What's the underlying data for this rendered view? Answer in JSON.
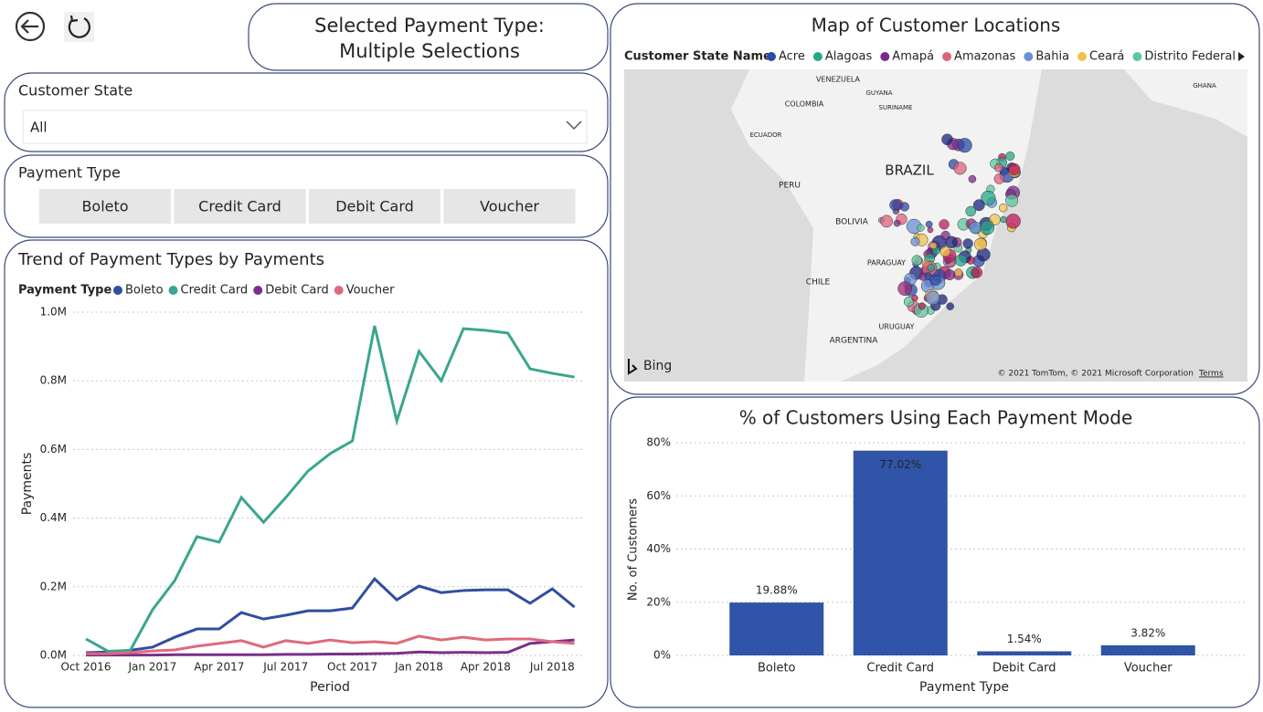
{
  "header": {
    "title_line1": "Selected Payment Type:",
    "title_line2": "Multiple Selections"
  },
  "filters": {
    "state_label": "Customer State",
    "state_value": "All",
    "payment_label": "Payment Type",
    "payment_options": [
      "Boleto",
      "Credit Card",
      "Debit Card",
      "Voucher"
    ]
  },
  "map": {
    "title": "Map of Customer Locations",
    "legend_title": "Customer State Name",
    "legend": [
      {
        "name": "Acre",
        "color": "#2a4aa8"
      },
      {
        "name": "Alagoas",
        "color": "#2aa58a"
      },
      {
        "name": "Amapá",
        "color": "#7b2a8a"
      },
      {
        "name": "Amazonas",
        "color": "#e0607e"
      },
      {
        "name": "Bahia",
        "color": "#6b8fd6"
      },
      {
        "name": "Ceará",
        "color": "#f0c24f"
      },
      {
        "name": "Distrito Federal",
        "color": "#5cc8a0"
      }
    ],
    "labels": [
      "VENEZUELA",
      "GUYANA",
      "SURINAME",
      "COLOMBIA",
      "ECUADOR",
      "BRAZIL",
      "PERU",
      "BOLIVIA",
      "PARAGUAY",
      "CHILE",
      "URUGUAY",
      "ARGENTINA",
      "GHANA"
    ],
    "brand": "Bing",
    "copyright": "© 2021 TomTom, © 2021 Microsoft Corporation",
    "terms": "Terms"
  },
  "chart_data": [
    {
      "type": "line",
      "title": "Trend of Payment Types by Payments",
      "legend_title": "Payment Type",
      "x_label": "Period",
      "y_label": "Payments",
      "x": [
        "Oct 2016",
        null,
        null,
        "Jan 2017",
        null,
        null,
        "Apr 2017",
        null,
        null,
        "Jul 2017",
        null,
        null,
        "Oct 2017",
        null,
        null,
        "Jan 2018",
        null,
        null,
        "Apr 2018",
        null,
        null,
        "Jul 2018",
        null
      ],
      "series": [
        {
          "name": "Boleto",
          "color": "#2f4f9f",
          "values": [
            8000,
            10000,
            15000,
            24000,
            53000,
            77000,
            77000,
            125000,
            106000,
            117000,
            130000,
            130000,
            138000,
            223000,
            162000,
            202000,
            183000,
            189000,
            191000,
            191000,
            152000,
            194000,
            141000
          ]
        },
        {
          "name": "Credit Card",
          "color": "#3aa68d",
          "values": [
            48000,
            12000,
            15000,
            133000,
            218000,
            346000,
            330000,
            460000,
            388000,
            460000,
            537000,
            588000,
            625000,
            960000,
            683000,
            886000,
            800000,
            952000,
            947000,
            939000,
            835000,
            822000,
            811000
          ]
        },
        {
          "name": "Debit Card",
          "color": "#7a2f8a",
          "values": [
            1000,
            1000,
            1000,
            1000,
            2000,
            2000,
            2000,
            2000,
            2000,
            3000,
            3000,
            4000,
            4000,
            5000,
            6000,
            10000,
            8000,
            9000,
            8000,
            9000,
            35000,
            40000,
            45000
          ]
        },
        {
          "name": "Voucher",
          "color": "#e0697e",
          "values": [
            5000,
            5000,
            8000,
            13000,
            16000,
            27000,
            35000,
            43000,
            24000,
            43000,
            35000,
            45000,
            37000,
            40000,
            35000,
            56000,
            45000,
            53000,
            45000,
            48000,
            48000,
            40000,
            35000
          ]
        }
      ],
      "ylim": [
        0,
        1000000
      ],
      "yticks": [
        {
          "value": 0,
          "label": "0.0M"
        },
        {
          "value": 200000,
          "label": "0.2M"
        },
        {
          "value": 400000,
          "label": "0.4M"
        },
        {
          "value": 600000,
          "label": "0.6M"
        },
        {
          "value": 800000,
          "label": "0.8M"
        },
        {
          "value": 1000000,
          "label": "1.0M"
        }
      ],
      "grid": true
    },
    {
      "type": "bar",
      "title": "% of Customers Using Each Payment Mode",
      "x_label": "Payment Type",
      "y_label": "No. of Customers",
      "categories": [
        "Boleto",
        "Credit Card",
        "Debit Card",
        "Voucher"
      ],
      "values": [
        19.88,
        77.02,
        1.54,
        3.82
      ],
      "value_labels": [
        "19.88%",
        "77.02%",
        "1.54%",
        "3.82%"
      ],
      "color": "#2f54a8",
      "ylim": [
        0,
        80
      ],
      "yticks": [
        {
          "value": 0,
          "label": "0%"
        },
        {
          "value": 20,
          "label": "20%"
        },
        {
          "value": 40,
          "label": "40%"
        },
        {
          "value": 60,
          "label": "60%"
        },
        {
          "value": 80,
          "label": "80%"
        }
      ],
      "grid": true
    }
  ]
}
